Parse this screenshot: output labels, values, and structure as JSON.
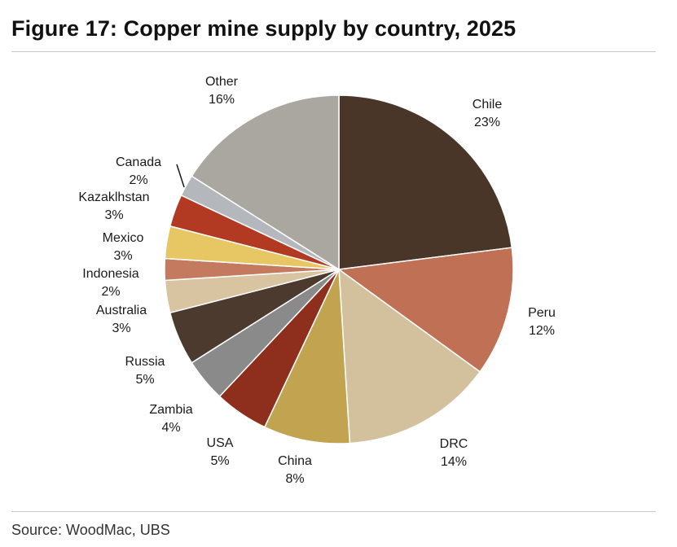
{
  "title": "Figure 17: Copper mine supply by country, 2025",
  "source": "Source: WoodMac, UBS",
  "chart_data": {
    "type": "pie",
    "title": "Figure 17: Copper mine supply by country, 2025",
    "legend": "none (direct labels)",
    "slices": [
      {
        "label": "Chile",
        "value": 23,
        "value_label": "23%",
        "color": "#4a3628"
      },
      {
        "label": "Peru",
        "value": 12,
        "value_label": "12%",
        "color": "#c07055"
      },
      {
        "label": "DRC",
        "value": 14,
        "value_label": "14%",
        "color": "#d3c09c"
      },
      {
        "label": "China",
        "value": 8,
        "value_label": "8%",
        "color": "#c2a34f"
      },
      {
        "label": "USA",
        "value": 5,
        "value_label": "5%",
        "color": "#8e2e1c"
      },
      {
        "label": "Zambia",
        "value": 4,
        "value_label": "4%",
        "color": "#8a8a8a"
      },
      {
        "label": "Russia",
        "value": 5,
        "value_label": "5%",
        "color": "#4b3a2d"
      },
      {
        "label": "Australia",
        "value": 3,
        "value_label": "3%",
        "color": "#d9c4a2"
      },
      {
        "label": "Indonesia",
        "value": 2,
        "value_label": "2%",
        "color": "#c47a5e"
      },
      {
        "label": "Mexico",
        "value": 3,
        "value_label": "3%",
        "color": "#e7c764"
      },
      {
        "label": "Kazaklhstan",
        "value": 3,
        "value_label": "3%",
        "color": "#b23a22"
      },
      {
        "label": "Canada",
        "value": 2,
        "value_label": "2%",
        "color": "#b4b7bc"
      },
      {
        "label": "Other",
        "value": 16,
        "value_label": "16%",
        "color": "#aaa7a1"
      }
    ]
  }
}
